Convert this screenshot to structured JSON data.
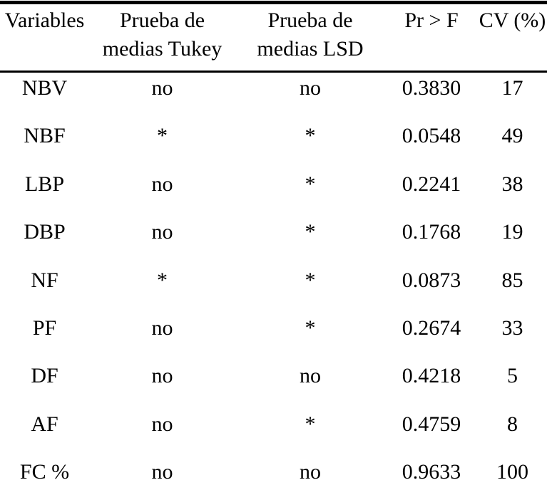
{
  "colors": {
    "text": "#000000",
    "background": "#ffffff",
    "rule": "#000000"
  },
  "table": {
    "headers": {
      "variables": "Variables",
      "tukey_line1": "Prueba de",
      "tukey_line2": "medias Tukey",
      "lsd_line1": "Prueba de",
      "lsd_line2": "medias LSD",
      "pr_f": "Pr > F",
      "cv": "CV (%)"
    },
    "rows": [
      {
        "variable": "NBV",
        "tukey": "no",
        "lsd": "no",
        "pr_f": "0.3830",
        "cv": "17"
      },
      {
        "variable": "NBF",
        "tukey": "*",
        "lsd": "*",
        "pr_f": "0.0548",
        "cv": "49"
      },
      {
        "variable": "LBP",
        "tukey": "no",
        "lsd": "*",
        "pr_f": "0.2241",
        "cv": "38"
      },
      {
        "variable": "DBP",
        "tukey": "no",
        "lsd": "*",
        "pr_f": "0.1768",
        "cv": "19"
      },
      {
        "variable": "NF",
        "tukey": "*",
        "lsd": "*",
        "pr_f": "0.0873",
        "cv": "85"
      },
      {
        "variable": "PF",
        "tukey": "no",
        "lsd": "*",
        "pr_f": "0.2674",
        "cv": "33"
      },
      {
        "variable": "DF",
        "tukey": "no",
        "lsd": "no",
        "pr_f": "0.4218",
        "cv": "5"
      },
      {
        "variable": "AF",
        "tukey": "no",
        "lsd": "*",
        "pr_f": "0.4759",
        "cv": "8"
      },
      {
        "variable": "FC %",
        "tukey": "no",
        "lsd": "no",
        "pr_f": "0.9633",
        "cv": "100"
      }
    ]
  }
}
